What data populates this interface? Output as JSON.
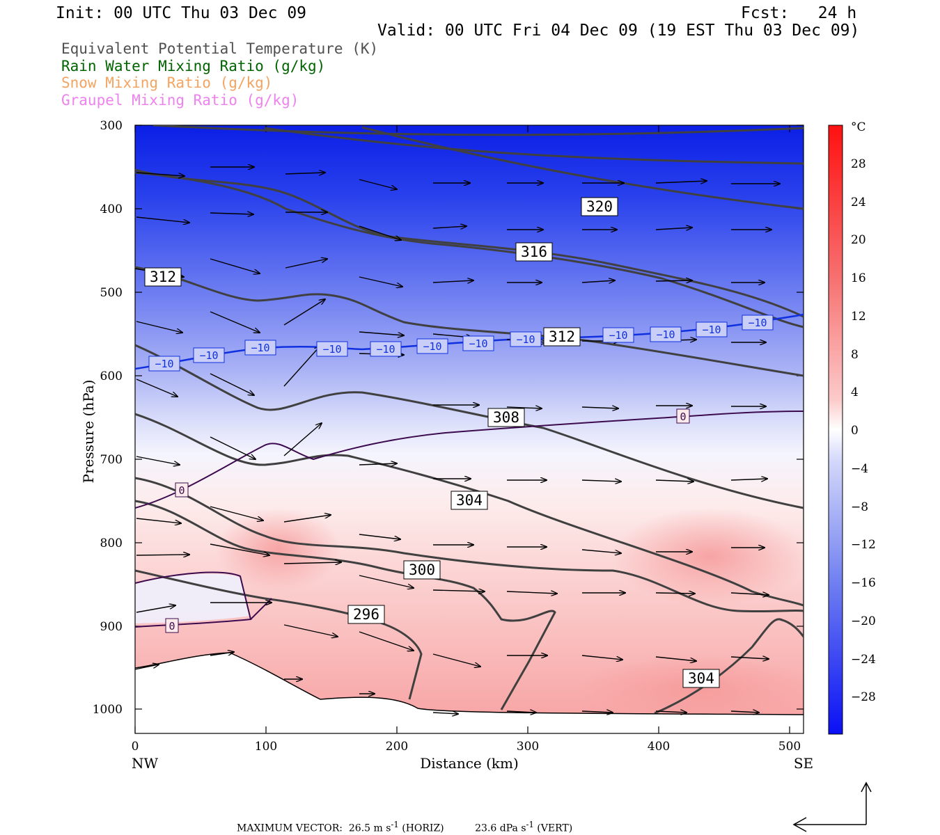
{
  "header": {
    "init": "Init: 00 UTC Thu 03 Dec 09",
    "fcst": "Fcst:   24 h",
    "valid": "Valid: 00 UTC Fri 04 Dec 09 (19 EST Thu 03 Dec 09)"
  },
  "legend": [
    {
      "label": "Equivalent Potential Temperature (K)",
      "color": "#505050"
    },
    {
      "label": "Rain Water Mixing Ratio (g/kg)",
      "color": "#006400"
    },
    {
      "label": "Snow Mixing Ratio (g/kg)",
      "color": "#f4a460"
    },
    {
      "label": "Graupel Mixing Ratio (g/kg)",
      "color": "#ee82ee"
    }
  ],
  "axes": {
    "ylabel": "Pressure (hPa)",
    "xlabel": "Distance (km)",
    "y_ticks": [
      "300",
      "400",
      "500",
      "600",
      "700",
      "800",
      "900",
      "1000"
    ],
    "x_ticks": [
      "0",
      "100",
      "200",
      "300",
      "400",
      "500"
    ],
    "left_end": "NW",
    "right_end": "SE"
  },
  "colorbar": {
    "unit": "°C",
    "labels": [
      "28",
      "24",
      "20",
      "16",
      "12",
      "8",
      "4",
      "0",
      "−4",
      "−8",
      "−12",
      "−16",
      "−20",
      "−24",
      "−28"
    ]
  },
  "contour_labels": {
    "theta_e": [
      "320",
      "316",
      "312",
      "312",
      "308",
      "304",
      "300",
      "296",
      "304"
    ],
    "isotherm_minus10": [
      "−10",
      "−10",
      "−10",
      "−10",
      "−10",
      "−10",
      "−10",
      "−10",
      "−10",
      "−10",
      "−10",
      "−10",
      "−10",
      "−10"
    ],
    "isotherm_zero": [
      "0",
      "0",
      "0"
    ]
  },
  "footer": {
    "text_prefix": "MAXIMUM VECTOR:  26.5 m s",
    "sup1": "-1",
    "mid": " (HORIZ)          23.6 dPa s",
    "sup2": "-1",
    "suffix": " (VERT)"
  }
}
